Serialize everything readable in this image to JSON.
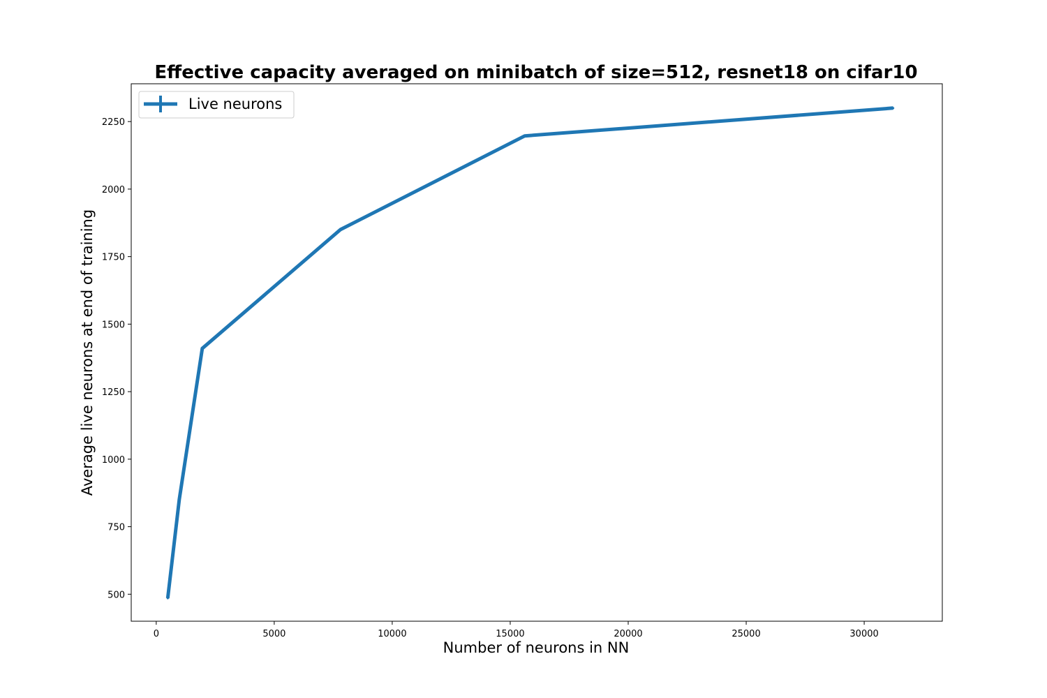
{
  "chart_data": {
    "type": "line",
    "title": "Effective capacity averaged on minibatch of size=512, resnet18 on cifar10",
    "xlabel": "Number of neurons in NN",
    "ylabel": "Average live neurons at end of training",
    "xlim": [
      -1060,
      33310
    ],
    "ylim": [
      400,
      2390
    ],
    "xticks": [
      0,
      5000,
      10000,
      15000,
      20000,
      25000,
      30000
    ],
    "yticks": [
      500,
      750,
      1000,
      1250,
      1500,
      1750,
      2000,
      2250
    ],
    "grid": false,
    "legend_position": "top-left",
    "series": [
      {
        "name": "Live neurons",
        "color": "#1f77b4",
        "x": [
          488,
          976,
          1952,
          7808,
          15616,
          31232
        ],
        "y": [
          485,
          850,
          1410,
          1850,
          2197,
          2300
        ]
      }
    ]
  }
}
